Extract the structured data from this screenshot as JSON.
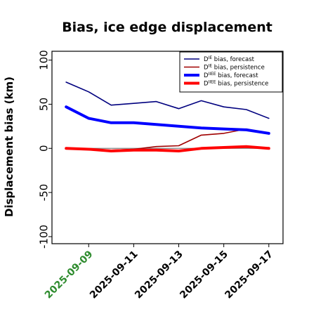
{
  "chart_data": {
    "type": "line",
    "title": "Bias, ice edge displacement",
    "ylabel": "Displacement bias (km)",
    "xlabel": "",
    "ylim": [
      -108,
      110
    ],
    "yticks": [
      100,
      50,
      0,
      -50,
      -100
    ],
    "x": [
      "2025-09-08",
      "2025-09-09",
      "2025-09-10",
      "2025-09-11",
      "2025-09-12",
      "2025-09-13",
      "2025-09-14",
      "2025-09-15",
      "2025-09-16",
      "2025-09-17"
    ],
    "xticks": [
      "2025-09-09",
      "2025-09-11",
      "2025-09-13",
      "2025-09-15",
      "2025-09-17"
    ],
    "highlight_tick": "2025-09-09",
    "highlight_color": "#2e8b2e",
    "zero_line": true,
    "legend_position": "upper-right",
    "series": [
      {
        "name": "D^IE bias, forecast",
        "base": "D",
        "sup": "IE",
        "suffix": " bias, forecast",
        "color": "#00007f",
        "width": "thin",
        "values": [
          75,
          64,
          49,
          51,
          53,
          45,
          54,
          47,
          44,
          34
        ]
      },
      {
        "name": "D^IE bias, persistence",
        "base": "D",
        "sup": "IE",
        "suffix": " bias, persistence",
        "color": "#a00000",
        "width": "thin",
        "values": [
          0,
          -1,
          -2,
          -1,
          2,
          3,
          15,
          17,
          22,
          17
        ]
      },
      {
        "name": "D^IIEE bias, forecast",
        "base": "D",
        "sup": "IIEE",
        "suffix": " bias, forecast",
        "color": "#0000ff",
        "width": "thick",
        "values": [
          47,
          34,
          29,
          29,
          27,
          25,
          23,
          22,
          21,
          17
        ]
      },
      {
        "name": "D^IIEE bias, persistence",
        "base": "D",
        "sup": "IIEE",
        "suffix": " bias, persistence",
        "color": "#ff0000",
        "width": "thick",
        "values": [
          0,
          -1,
          -3,
          -2,
          -2,
          -3,
          0,
          1,
          2,
          0
        ]
      }
    ]
  }
}
